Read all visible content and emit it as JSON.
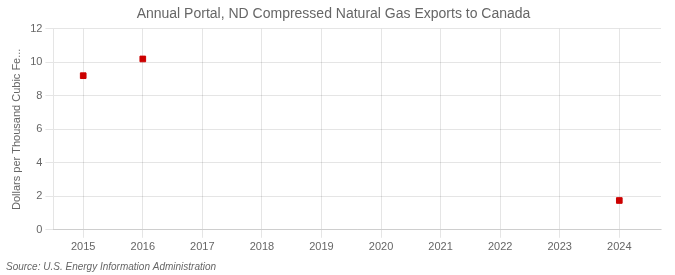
{
  "chart_data": {
    "type": "scatter",
    "title": "Annual Portal, ND Compressed Natural Gas Exports to Canada",
    "ylabel": "Dollars per Thousand Cubic Fe...",
    "annotations": [
      "Source: U.S. Energy Information Administration"
    ],
    "x": [
      2015,
      2016,
      2024
    ],
    "values": [
      9.2,
      10.2,
      1.75
    ],
    "color": "#cc0000",
    "marker": "square",
    "xlim": [
      2014.5,
      2024.7
    ],
    "ylim": [
      0,
      12
    ],
    "xticks": [
      2015,
      2016,
      2017,
      2018,
      2019,
      2020,
      2021,
      2022,
      2023,
      2024
    ],
    "yticks": [
      0,
      2,
      4,
      6,
      8,
      10,
      12
    ],
    "grid": true
  }
}
